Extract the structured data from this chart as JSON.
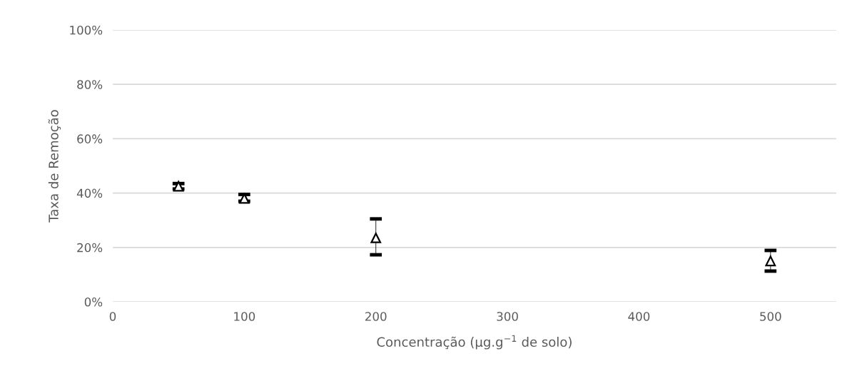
{
  "chart_data": {
    "type": "scatter",
    "xlabel": "Concentração (µg.g$^{−1}$ de solo)",
    "ylabel": "Taxa de Remoção",
    "x": [
      50,
      100,
      200,
      500
    ],
    "series": [
      {
        "color": "#000000",
        "values": [
          42.5,
          38,
          23.5,
          15
        ],
        "errors": [
          [
            41.5,
            43.5
          ],
          [
            37,
            39.5
          ],
          [
            17.3,
            30.5
          ],
          [
            11.3,
            18.9
          ]
        ]
      }
    ],
    "xlim": [
      0,
      550
    ],
    "xticks": [
      0,
      100,
      200,
      300,
      400,
      500
    ],
    "ylim": [
      0,
      100
    ],
    "yticks": [
      {
        "value": 0,
        "label": "0%"
      },
      {
        "value": 20,
        "label": "20%"
      },
      {
        "value": 40,
        "label": "40%"
      },
      {
        "value": 60,
        "label": "60%"
      },
      {
        "value": 80,
        "label": "80%"
      },
      {
        "value": 100,
        "label": "100%"
      }
    ],
    "grid": "y",
    "marker": "triangle"
  }
}
